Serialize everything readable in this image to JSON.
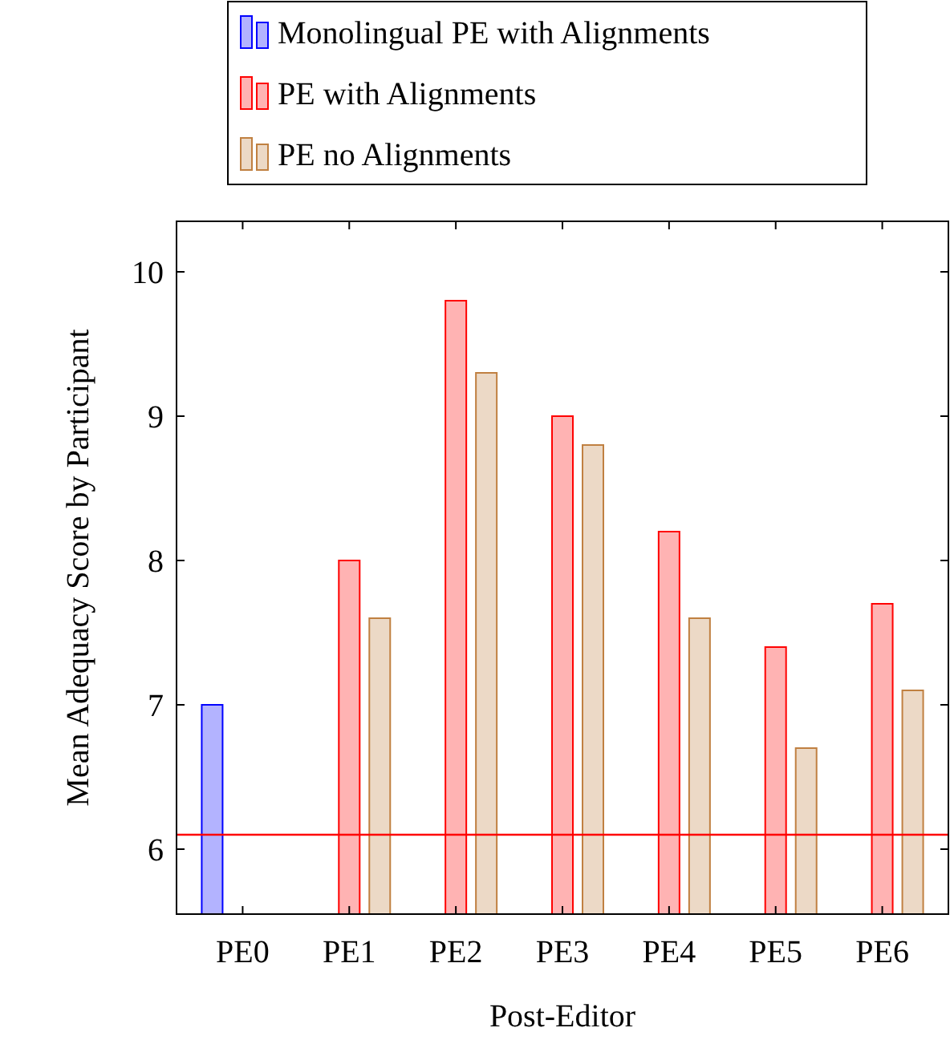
{
  "chart_data": {
    "type": "bar",
    "xlabel": "Post-Editor",
    "ylabel": "Mean Adequacy Score by Participant",
    "categories": [
      "PE0",
      "PE1",
      "PE2",
      "PE3",
      "PE4",
      "PE5",
      "PE6"
    ],
    "series": [
      {
        "name": "Monolingual PE with Alignments",
        "color": "#b3b3ff",
        "values": [
          7.0,
          null,
          null,
          null,
          null,
          null,
          null
        ]
      },
      {
        "name": "PE with Alignments",
        "color": "#ffb3b3",
        "values": [
          null,
          8.0,
          9.8,
          9.0,
          8.2,
          7.4,
          7.7
        ]
      },
      {
        "name": "PE no Alignments",
        "color": "#ecd9c6",
        "values": [
          null,
          7.6,
          9.3,
          8.8,
          7.6,
          6.7,
          7.1
        ]
      }
    ],
    "ylim": [
      5.55,
      10.35
    ],
    "yticks": [
      6,
      7,
      8,
      9,
      10
    ],
    "ref_lines": [
      {
        "axis": "y",
        "value": 6.1,
        "color": "#ff0000"
      }
    ],
    "legend": "top",
    "grid": false
  }
}
